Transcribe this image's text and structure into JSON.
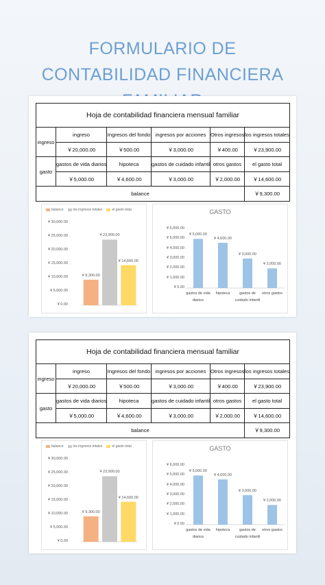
{
  "header": {
    "title": "FORMULARIO DE CONTABILIDAD FINANCIERA FAMILIAR"
  },
  "sheets": [
    {
      "table": {
        "title": "Hoja de contabilidad financiera mensual familiar",
        "income": {
          "label": "ingreso",
          "headers": [
            "ingreso",
            "Ingresos del fondo",
            "ingresos por acciones",
            "Otros ingresos",
            "los ingresos totales"
          ],
          "values": [
            "￥20,000.00",
            "￥500.00",
            "￥3,000.00",
            "￥400.00",
            "￥23,900.00"
          ]
        },
        "expense": {
          "label": "gasto",
          "headers": [
            "gastos de vida diarios",
            "hipoteca",
            "gastos de cuidado infantil",
            "otros gastos",
            "el gasto total"
          ],
          "values": [
            "￥5,000.00",
            "￥4,600.00",
            "￥3,000.00",
            "￥2,000.00",
            "￥14,600.00"
          ]
        },
        "balance": {
          "label": "balance",
          "value": "￥9,300.00"
        }
      },
      "charts": [
        {
          "type": "bar",
          "legend": "top",
          "categories": [
            "balance",
            "los ingresos totales",
            "el gasto total"
          ],
          "values": [
            9300,
            23900,
            14600
          ],
          "value_labels": [
            "¥ 9,300.00",
            "¥ 23,900.00",
            "¥ 14,600.00"
          ],
          "colors": [
            "#f4b183",
            "#c9c9c9",
            "#ffd966"
          ],
          "ylim": [
            0,
            30000
          ],
          "yticks": [
            {
              "value": 0,
              "label": "¥ 0.00"
            },
            {
              "value": 5000,
              "label": "¥ 5,000.00"
            },
            {
              "value": 10000,
              "label": "¥ 10,000.00"
            },
            {
              "value": 15000,
              "label": "¥ 15,000.00"
            },
            {
              "value": 20000,
              "label": "¥ 20,000.00"
            },
            {
              "value": 25000,
              "label": "¥ 25,000.00"
            },
            {
              "value": 30000,
              "label": "¥ 30,000.00"
            }
          ]
        },
        {
          "type": "bar",
          "title": "GASTO",
          "categories": [
            "gastos de vida diarios",
            "hipoteca",
            "gastos de cuidado infantil",
            "otros gastos"
          ],
          "values": [
            5000,
            4600,
            3000,
            2000
          ],
          "value_labels": [
            "¥ 5,000.00",
            "¥ 4,600.00",
            "¥ 3,000.00",
            "¥ 2,000.00"
          ],
          "color": "#9dc3e6",
          "ylim": [
            0,
            6000
          ],
          "yticks": [
            {
              "value": 0,
              "label": "¥ 0.00"
            },
            {
              "value": 1000,
              "label": "¥ 1,000.00"
            },
            {
              "value": 2000,
              "label": "¥ 2,000.00"
            },
            {
              "value": 3000,
              "label": "¥ 3,000.00"
            },
            {
              "value": 4000,
              "label": "¥ 4,000.00"
            },
            {
              "value": 5000,
              "label": "¥ 5,000.00"
            },
            {
              "value": 6000,
              "label": "¥ 6,000.00"
            }
          ]
        }
      ]
    },
    {
      "table": {
        "title": "Hoja de contabilidad financiera mensual familiar",
        "income": {
          "label": "ingreso",
          "headers": [
            "ingreso",
            "Ingresos del fondo",
            "ingresos por acciones",
            "Otros ingresos",
            "los ingresos totales"
          ],
          "values": [
            "￥20,000.00",
            "￥500.00",
            "￥3,000.00",
            "￥400.00",
            "￥23,900.00"
          ]
        },
        "expense": {
          "label": "gasto",
          "headers": [
            "gastos de vida diarios",
            "hipoteca",
            "gastos de cuidado infantil",
            "otros gastos",
            "el gasto total"
          ],
          "values": [
            "￥5,000.00",
            "￥4,600.00",
            "￥3,000.00",
            "￥2,000.00",
            "￥14,600.00"
          ]
        },
        "balance": {
          "label": "balance",
          "value": "￥9,300.00"
        }
      },
      "charts": [
        {
          "type": "bar",
          "legend": "top",
          "categories": [
            "balance",
            "los ingresos totales",
            "el gasto total"
          ],
          "values": [
            9300,
            23900,
            14600
          ],
          "value_labels": [
            "¥ 9,300.00",
            "¥ 23,900.00",
            "¥ 14,600.00"
          ],
          "colors": [
            "#f4b183",
            "#c9c9c9",
            "#ffd966"
          ],
          "ylim": [
            0,
            30000
          ],
          "yticks": [
            {
              "value": 0,
              "label": "¥ 0.00"
            },
            {
              "value": 5000,
              "label": "¥ 5,000.00"
            },
            {
              "value": 10000,
              "label": "¥ 10,000.00"
            },
            {
              "value": 15000,
              "label": "¥ 15,000.00"
            },
            {
              "value": 20000,
              "label": "¥ 20,000.00"
            },
            {
              "value": 25000,
              "label": "¥ 25,000.00"
            },
            {
              "value": 30000,
              "label": "¥ 30,000.00"
            }
          ]
        },
        {
          "type": "bar",
          "title": "GASTO",
          "categories": [
            "gastos de vida diarios",
            "hipoteca",
            "gastos de cuidado infantil",
            "otros gastos"
          ],
          "values": [
            5000,
            4600,
            3000,
            2000
          ],
          "value_labels": [
            "¥ 5,000.00",
            "¥ 4,600.00",
            "¥ 3,000.00",
            "¥ 2,000.00"
          ],
          "color": "#9dc3e6",
          "ylim": [
            0,
            6000
          ],
          "yticks": [
            {
              "value": 0,
              "label": "¥ 0.00"
            },
            {
              "value": 1000,
              "label": "¥ 1,000.00"
            },
            {
              "value": 2000,
              "label": "¥ 2,000.00"
            },
            {
              "value": 3000,
              "label": "¥ 3,000.00"
            },
            {
              "value": 4000,
              "label": "¥ 4,000.00"
            },
            {
              "value": 5000,
              "label": "¥ 5,000.00"
            },
            {
              "value": 6000,
              "label": "¥ 6,000.00"
            }
          ]
        }
      ]
    }
  ]
}
